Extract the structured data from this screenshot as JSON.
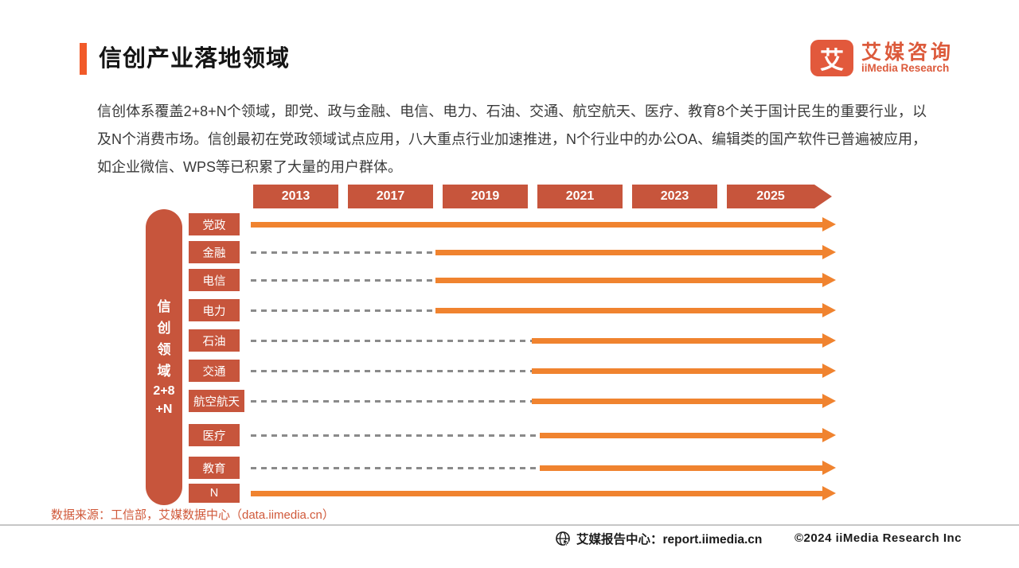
{
  "header": {
    "title": "信创产业落地领域",
    "logo": {
      "mark": "艾",
      "name_cn": "艾媒咨询",
      "name_en": "iiMedia Research"
    }
  },
  "intro": "信创体系覆盖2+8+N个领域，即党、政与金融、电信、电力、石油、交通、航空航天、医疗、教育8个关于国计民生的重要行业，以及N个消费市场。信创最初在党政领域试点应用，八大重点行业加速推进，N个行业中的办公OA、编辑类的国产软件已普遍被应用，如企业微信、WPS等已积累了大量的用户群体。",
  "chart_data": {
    "type": "timeline",
    "title": "信创产业落地领域",
    "years": [
      "2013",
      "2017",
      "2019",
      "2021",
      "2023",
      "2025"
    ],
    "axis_label": "信创领域2+8+N",
    "axis_label_lines": [
      "信",
      "创",
      "领",
      "域",
      "2+8",
      "+N"
    ],
    "rows": [
      {
        "label": "党政",
        "start_year": "2013",
        "start_pct": 0
      },
      {
        "label": "金融",
        "start_year": "2019",
        "start_pct": 31.6
      },
      {
        "label": "电信",
        "start_year": "2019",
        "start_pct": 31.6
      },
      {
        "label": "电力",
        "start_year": "2019",
        "start_pct": 31.6
      },
      {
        "label": "石油",
        "start_year": "2021",
        "start_pct": 48.0
      },
      {
        "label": "交通",
        "start_year": "2021",
        "start_pct": 48.0
      },
      {
        "label": "航空航天",
        "start_year": "2021",
        "start_pct": 48.0
      },
      {
        "label": "医疗",
        "start_year": "2021",
        "start_pct": 49.4
      },
      {
        "label": "教育",
        "start_year": "2021",
        "start_pct": 49.4
      },
      {
        "label": "N",
        "start_year": "2013",
        "start_pct": 0
      }
    ],
    "colors": {
      "year_box": "#C7553C",
      "label_box": "#C7553C",
      "arrow": "#F0832F",
      "dash": "#8a8a8a",
      "accent": "#F15A29",
      "brand": "#DC5A3B"
    },
    "legend": null,
    "grid": false
  },
  "source": "数据来源：工信部，艾媒数据中心（data.iimedia.cn）",
  "footer": {
    "report_center": "艾媒报告中心：report.iimedia.cn",
    "copyright": "©2024  iiMedia Research  Inc"
  }
}
